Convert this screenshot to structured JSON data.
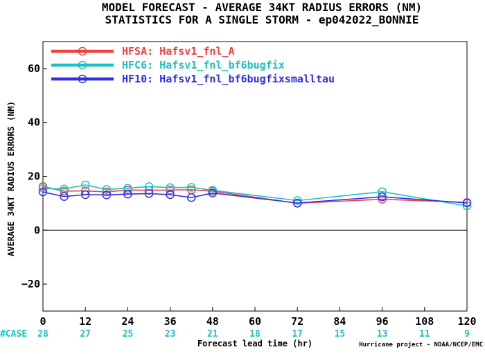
{
  "chart_data": {
    "type": "line",
    "title_lines": [
      "MODEL FORECAST - AVERAGE 34KT RADIUS ERRORS (NM)",
      "STATISTICS FOR A SINGLE STORM - ep042022_BONNIE"
    ],
    "xlabel": "Forecast lead time (hr)",
    "ylabel": "AVERAGE 34KT RADIUS ERRORS (NM)",
    "xlim": [
      0,
      120
    ],
    "ylim": [
      -30,
      70
    ],
    "xticks": [
      0,
      12,
      24,
      36,
      48,
      60,
      72,
      84,
      96,
      108,
      120
    ],
    "yticks": [
      -20,
      0,
      20,
      40,
      60
    ],
    "zero_line": true,
    "grid": false,
    "legend_position": "top-left",
    "case_label": "#CASE",
    "case_counts": {
      "x": [
        0,
        12,
        24,
        36,
        48,
        60,
        72,
        84,
        96,
        108,
        120
      ],
      "values": [
        "28",
        "27",
        "25",
        "23",
        "21",
        "18",
        "17",
        "15",
        "13",
        "11",
        "9"
      ]
    },
    "series": [
      {
        "name": "HFSA: Hafsv1_fnl_A",
        "color": "#f04040",
        "x": [
          0,
          6,
          12,
          18,
          24,
          30,
          36,
          42,
          48,
          72,
          96,
          120
        ],
        "y": [
          16.2,
          14.5,
          14.6,
          14.2,
          14.9,
          14.8,
          14.9,
          15.0,
          14.5,
          10.0,
          11.5,
          10.3
        ]
      },
      {
        "name": "HFC6: Hafsv1_fnl_bf6bugfix",
        "color": "#20c0c0",
        "x": [
          0,
          6,
          12,
          18,
          24,
          30,
          36,
          42,
          48,
          72,
          96,
          120
        ],
        "y": [
          15.5,
          15.3,
          16.8,
          15.1,
          15.6,
          16.2,
          15.8,
          15.9,
          14.8,
          11.0,
          14.3,
          9.0
        ]
      },
      {
        "name": "HF10: Hafsv1_fnl_bf6bugfixsmalltau",
        "color": "#3030f0",
        "x": [
          0,
          6,
          12,
          18,
          24,
          30,
          36,
          42,
          48,
          72,
          96,
          120
        ],
        "y": [
          14.2,
          12.5,
          13.2,
          13.1,
          13.4,
          13.6,
          13.2,
          12.1,
          13.8,
          10.1,
          12.4,
          10.1
        ]
      }
    ],
    "credit": "Hurricane project - NOAA/NCEP/EMC"
  }
}
